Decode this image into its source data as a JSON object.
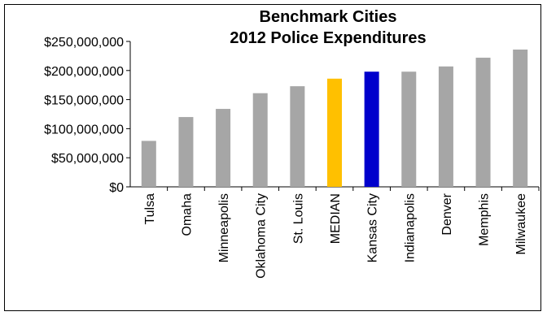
{
  "chart_data": {
    "type": "bar",
    "title_lines": [
      "Benchmark Cities",
      "2012 Police Expenditures"
    ],
    "categories": [
      "Tulsa",
      "Omaha",
      "Minneapolis",
      "Oklahoma City",
      "St. Louis",
      "MEDIAN",
      "Kansas City",
      "Indianapolis",
      "Denver",
      "Memphis",
      "Milwaukee"
    ],
    "values": [
      79000000,
      120000000,
      134000000,
      161000000,
      173000000,
      186000000,
      198000000,
      198000000,
      207000000,
      222000000,
      236000000
    ],
    "bar_colors": [
      "#a6a6a6",
      "#a6a6a6",
      "#a6a6a6",
      "#a6a6a6",
      "#a6a6a6",
      "#ffc000",
      "#0000cc",
      "#a6a6a6",
      "#a6a6a6",
      "#a6a6a6",
      "#a6a6a6"
    ],
    "yticks": [
      "$0",
      "$50,000,000",
      "$100,000,000",
      "$150,000,000",
      "$200,000,000",
      "$250,000,000"
    ],
    "ylim": [
      0,
      250000000
    ],
    "grid": false,
    "legend": "none"
  }
}
